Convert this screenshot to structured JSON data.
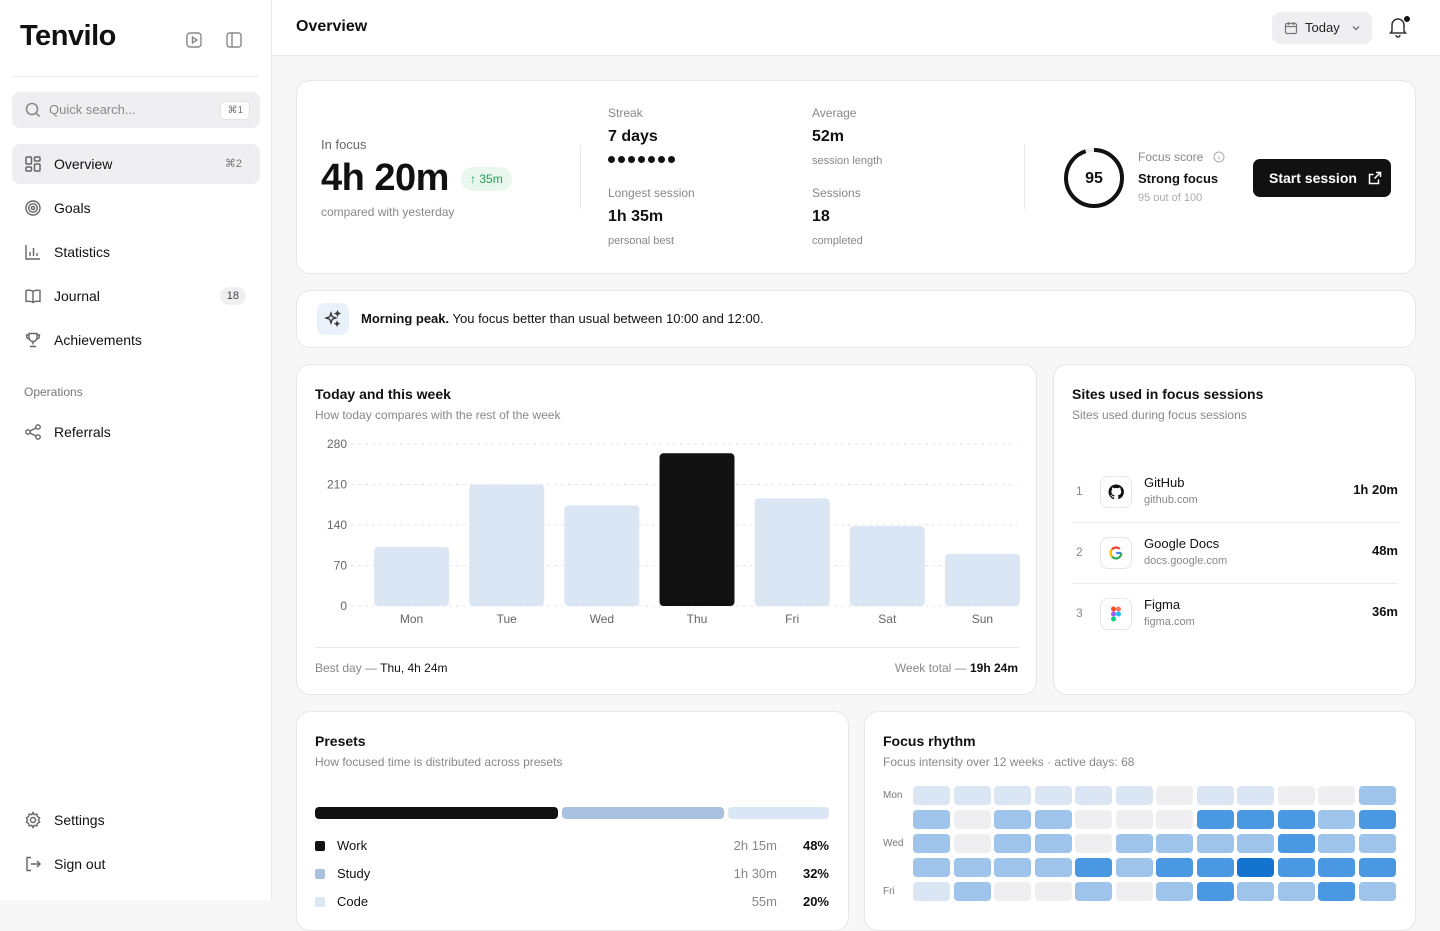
{
  "app": {
    "name": "Tenvilo"
  },
  "sidebar": {
    "search_placeholder": "Quick search...",
    "search_shortcut": "⌘1",
    "nav": [
      {
        "label": "Overview",
        "shortcut": "⌘2",
        "icon": "grid-icon",
        "active": true
      },
      {
        "label": "Goals",
        "icon": "target-icon"
      },
      {
        "label": "Statistics",
        "icon": "bar-chart-icon"
      },
      {
        "label": "Journal",
        "badge": "18",
        "icon": "book-icon"
      },
      {
        "label": "Achievements",
        "icon": "trophy-icon"
      }
    ],
    "section_label": "Operations",
    "section_items": [
      {
        "label": "Referrals",
        "icon": "share-icon"
      }
    ],
    "bottom": [
      {
        "label": "Settings",
        "icon": "gear-icon"
      },
      {
        "label": "Sign out",
        "icon": "sign-out-icon"
      }
    ]
  },
  "header": {
    "title": "Overview",
    "date_filter": "Today"
  },
  "summary": {
    "in_focus_label": "In focus",
    "in_focus_value": "4h 20m",
    "delta": "35m",
    "compare_text": "compared with yesterday",
    "streak_label": "Streak",
    "streak_value": "7 days",
    "streak_dots": 7,
    "average_label": "Average",
    "average_value": "52m",
    "average_sub": "session length",
    "longest_label": "Longest session",
    "longest_value": "1h 35m",
    "longest_sub": "personal best",
    "sessions_label": "Sessions",
    "sessions_value": "18",
    "sessions_sub": "completed",
    "score_value": "95",
    "score_fraction": 0.95,
    "score_label": "Focus score",
    "score_title": "Strong focus",
    "score_sub": "95 out of 100",
    "start_button": "Start session"
  },
  "insight": {
    "bold": "Morning peak.",
    "text": "You focus better than usual between 10:00 and 12:00."
  },
  "week_chart": {
    "title": "Today and this week",
    "subtitle": "How today compares with the rest of the week",
    "best_label": "Best day —",
    "best_value": "Thu, 4h 24m",
    "total_label": "Week total —",
    "total_value": "19h 24m"
  },
  "chart_data": {
    "type": "bar",
    "categories": [
      "Mon",
      "Tue",
      "Wed",
      "Thu",
      "Fri",
      "Sat",
      "Sun"
    ],
    "values": [
      102,
      210,
      174,
      264,
      186,
      138,
      90
    ],
    "highlight": "Thu",
    "ylim": [
      0,
      280
    ],
    "yticks": [
      0,
      70,
      140,
      210,
      280
    ],
    "title": "",
    "xlabel": "",
    "ylabel": "",
    "grid": true,
    "colors": {
      "bar": "#dbe6f5",
      "highlight": "#111111"
    }
  },
  "sites": {
    "title": "Sites used in focus sessions",
    "subtitle": "Sites used during focus sessions",
    "items": [
      {
        "rank": "1",
        "name": "GitHub",
        "domain": "github.com",
        "time": "1h 20m",
        "icon": "github-icon"
      },
      {
        "rank": "2",
        "name": "Google Docs",
        "domain": "docs.google.com",
        "time": "48m",
        "icon": "google-icon"
      },
      {
        "rank": "3",
        "name": "Figma",
        "domain": "figma.com",
        "time": "36m",
        "icon": "figma-icon"
      }
    ]
  },
  "presets": {
    "title": "Presets",
    "subtitle": "How focused time is distributed across presets",
    "items": [
      {
        "name": "Work",
        "time": "2h 15m",
        "pct": "48%",
        "share": 0.48,
        "color": "#111111"
      },
      {
        "name": "Study",
        "time": "1h 30m",
        "pct": "32%",
        "share": 0.32,
        "color": "#a9c1de"
      },
      {
        "name": "Code",
        "time": "55m",
        "pct": "20%",
        "share": 0.2,
        "color": "#dbe6f5"
      }
    ]
  },
  "rhythm": {
    "title": "Focus rhythm",
    "subtitle": "Focus intensity over 12 weeks · active days: 68",
    "row_labels": [
      "Mon",
      "",
      "Wed",
      "",
      "Fri"
    ],
    "levels": [
      [
        1,
        1,
        1,
        1,
        1,
        1,
        0,
        1,
        1,
        0,
        0,
        2
      ],
      [
        2,
        0,
        2,
        2,
        0,
        0,
        0,
        3,
        3,
        3,
        2,
        3
      ],
      [
        2,
        0,
        2,
        2,
        0,
        2,
        2,
        2,
        2,
        3,
        2,
        2
      ],
      [
        2,
        2,
        2,
        2,
        3,
        2,
        3,
        3,
        4,
        3,
        3,
        3
      ],
      [
        1,
        2,
        0,
        0,
        2,
        0,
        2,
        3,
        2,
        2,
        3,
        2
      ]
    ],
    "colors": [
      "#efeff1",
      "#dbe6f5",
      "#9fc4ec",
      "#4a97e2",
      "#1473cf"
    ]
  }
}
